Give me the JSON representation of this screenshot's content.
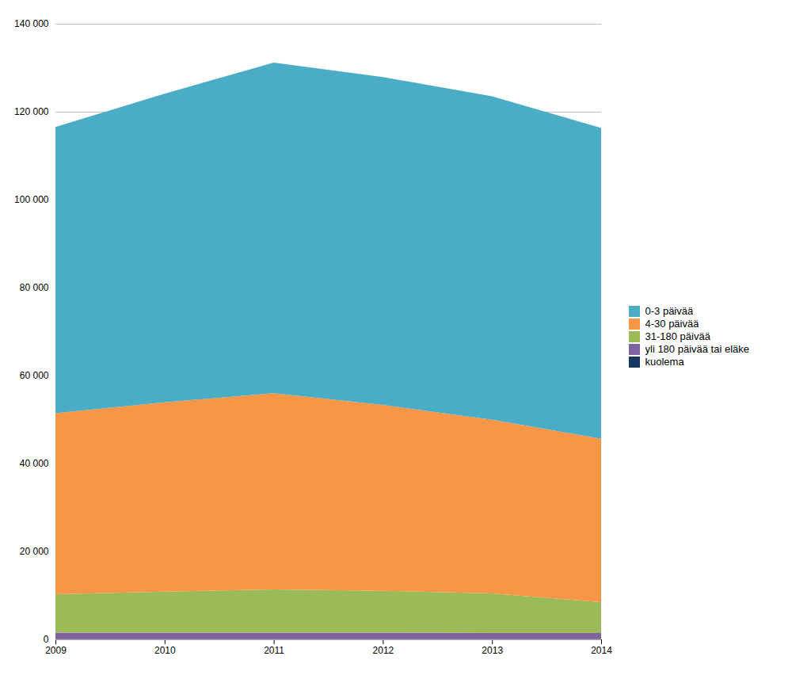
{
  "chart_data": {
    "type": "area",
    "stacked": true,
    "x": [
      2009,
      2010,
      2011,
      2012,
      2013,
      2014
    ],
    "series": [
      {
        "name": "0-3 päivää",
        "color": "#4bacc6",
        "values": [
          65099,
          70185,
          75208,
          74563,
          73591,
          70658
        ]
      },
      {
        "name": "4-30 päivää",
        "color": "#f79646",
        "values": [
          41204,
          43072,
          44622,
          42265,
          39490,
          37200
        ]
      },
      {
        "name": "31-180 päivää",
        "color": "#9bbb59",
        "values": [
          8700,
          9300,
          9800,
          9500,
          9000,
          7000
        ]
      },
      {
        "name": "yli 180 päivää tai eläke",
        "color": "#8064a2",
        "values": [
          1500,
          1500,
          1500,
          1500,
          1400,
          1400
        ]
      },
      {
        "name": "kuolema",
        "color": "#17375e",
        "values": [
          50,
          50,
          50,
          50,
          50,
          50
        ]
      }
    ],
    "xlim": [
      2009,
      2014
    ],
    "xticks": [
      2009,
      2010,
      2011,
      2012,
      2013,
      2014
    ],
    "ylim": [
      0,
      140000
    ],
    "yticks": [
      0,
      {
        "value": 20000,
        "label": "20 000"
      },
      {
        "value": 40000,
        "label": "40 000"
      },
      {
        "value": 60000,
        "label": "60 000"
      },
      {
        "value": 80000,
        "label": "80 000"
      },
      {
        "value": 100000,
        "label": "100 000"
      },
      {
        "value": 120000,
        "label": "120 000"
      },
      {
        "value": 140000,
        "label": "140 000"
      }
    ],
    "grid": true,
    "legend": "right"
  }
}
